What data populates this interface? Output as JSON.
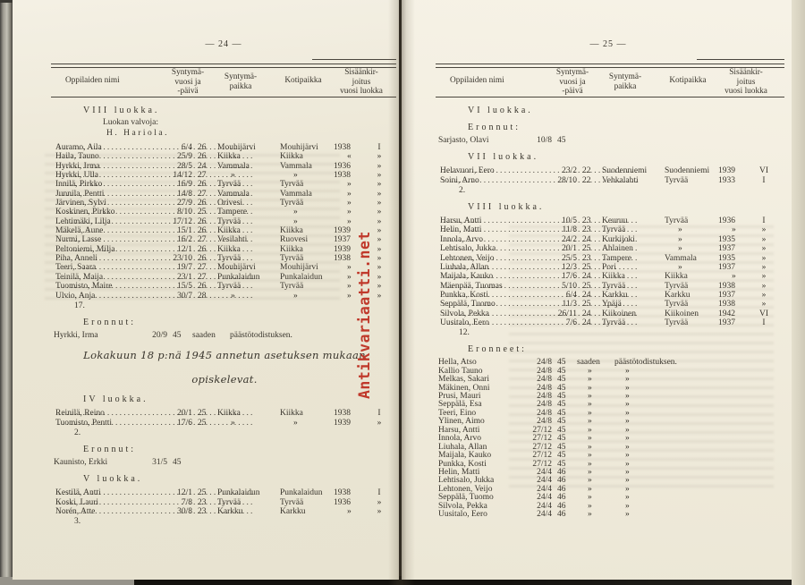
{
  "watermark": {
    "text": "Antikvariaatti.net",
    "color": "#c0392b"
  },
  "pages": [
    {
      "page_number": "— 24 —",
      "table_header": {
        "name": "Oppilaiden nimi",
        "birth": "Syntymä-\nvuosi ja\n-päivä",
        "birthplace": "Syntymä-\npaikka",
        "home": "Kotipaikka",
        "enroll": "Sisäänkir-\njoitus\nvuosi luokka"
      },
      "sections": [
        {
          "type": "heading",
          "text": "VIII luokka."
        },
        {
          "type": "subline",
          "text": "Luokan valvoja:"
        },
        {
          "type": "subline2",
          "text": "H. Hariola."
        },
        {
          "type": "roster",
          "rows": [
            [
              "Auramo, Aila",
              "6/4",
              "26",
              "Mouhijärvi",
              "Mouhijärvi",
              "1938",
              "I"
            ],
            [
              "Haila, Tauno",
              "25/9",
              "26",
              "Kiikka",
              "Kiikka",
              "«",
              "»"
            ],
            [
              "Hyrkki, Irma",
              "28/5",
              "24",
              "Vammala",
              "Vammala",
              "1936",
              "»"
            ],
            [
              "Hyrkki, Ulla",
              "14/12",
              "27",
              "»",
              "»",
              "1938",
              "»"
            ],
            [
              "Innilä, Pirkko",
              "16/9",
              "26",
              "Tyrvää",
              "Tyrvää",
              "»",
              "»"
            ],
            [
              "Junnila, Pentti",
              "14/8",
              "27",
              "Vammala",
              "Vammala",
              "»",
              "»"
            ],
            [
              "Järvinen, Sylvi",
              "27/9",
              "26",
              "Orivesi",
              "Tyrvää",
              "»",
              "»"
            ],
            [
              "Koskinen, Pirkko",
              "8/10",
              "25",
              "Tampere",
              "»",
              "»",
              "»"
            ],
            [
              "Lehtimäki, Lilja",
              "17/12",
              "26",
              "Tyrvää",
              "»",
              "»",
              "»"
            ],
            [
              "Mäkelä, Aune",
              "15/1",
              "26",
              "Kiikka",
              "Kiikka",
              "1939",
              "»"
            ],
            [
              "Nurmi, Lasse",
              "16/2",
              "27",
              "Vesilahti",
              "Ruovesi",
              "1937",
              "»"
            ],
            [
              "Peltoniemi, Milja",
              "12/1",
              "26",
              "Kiikka",
              "Kiikka",
              "1939",
              "»"
            ],
            [
              "Piha, Anneli",
              "23/10",
              "26",
              "Tyrvää",
              "Tyrvää",
              "1938",
              "»"
            ],
            [
              "Teeri, Saara",
              "19/7",
              "27",
              "Mouhijärvi",
              "Mouhijärvi",
              "»",
              "»"
            ],
            [
              "Teinilä, Maija",
              "23/1",
              "27",
              "Punkalaidun",
              "Punkalaidun",
              "»",
              "»"
            ],
            [
              "Tuomisto, Maire",
              "15/5",
              "26",
              "Tyrvää",
              "Tyrvää",
              "»",
              "»"
            ],
            [
              "Ulvio, Anja",
              "30/7",
              "28",
              "»",
              "»",
              "»",
              "»"
            ]
          ]
        },
        {
          "type": "count",
          "text": "17."
        },
        {
          "type": "heading",
          "text": "Eronnut:"
        },
        {
          "type": "exits",
          "rows": [
            [
              "Hyrkki, Irma",
              "20/9",
              "45",
              "saaden",
              "päästötodistuksen."
            ]
          ]
        },
        {
          "type": "note",
          "lines": [
            "Lokakuun 18 p:nä 1945 annetun asetuksen mukaan",
            "opiskelevat."
          ]
        },
        {
          "type": "heading",
          "text": "IV luokka."
        },
        {
          "type": "roster",
          "rows": [
            [
              "Reinilä, Reino",
              "20/1",
              "25",
              "Kiikka",
              "Kiikka",
              "1938",
              "I"
            ],
            [
              "Tuomisto, Pentti",
              "17/6",
              "25",
              "»",
              "»",
              "1939",
              "»"
            ]
          ]
        },
        {
          "type": "count",
          "text": "2."
        },
        {
          "type": "heading",
          "text": "Eronnut:"
        },
        {
          "type": "exits",
          "rows": [
            [
              "Kaunisto, Erkki",
              "31/5",
              "45",
              "",
              ""
            ]
          ]
        },
        {
          "type": "heading",
          "text": "V luokka."
        },
        {
          "type": "roster",
          "rows": [
            [
              "Kestilä, Antti",
              "12/1",
              "25",
              "Punkalaidun",
              "Punkalaidun",
              "1938",
              "I"
            ],
            [
              "Koski, Lauri",
              "7/8",
              "23",
              "Tyrvää",
              "Tyrvää",
              "1936",
              "»"
            ],
            [
              "Norén, Atte",
              "30/8",
              "23",
              "Karkku",
              "Karkku",
              "»",
              "»"
            ]
          ]
        },
        {
          "type": "count",
          "text": "3."
        }
      ]
    },
    {
      "page_number": "— 25 —",
      "table_header": {
        "name": "Oppilaiden nimi",
        "birth": "Syntymä-\nvuosi ja\n-päivä",
        "birthplace": "Syntymä-\npaikka",
        "home": "Kotipaikka",
        "enroll": "Sisäänkir-\njoitus\nvuosi luokka"
      },
      "sections": [
        {
          "type": "heading",
          "text": "VI luokka."
        },
        {
          "type": "heading",
          "text": "Eronnut:"
        },
        {
          "type": "exits",
          "rows": [
            [
              "Sarjasto, Olavi",
              "10/8",
              "45",
              "",
              ""
            ]
          ]
        },
        {
          "type": "heading",
          "text": "VII luokka."
        },
        {
          "type": "roster",
          "rows": [
            [
              "Helavuori, Eero",
              "23/2",
              "22",
              "Suodenniemi",
              "Suodenniemi",
              "1939",
              "VI"
            ],
            [
              "Soini, Arno",
              "28/10",
              "22",
              "Vehkalahti",
              "Tyrvää",
              "1933",
              "I"
            ]
          ]
        },
        {
          "type": "count",
          "text": "2."
        },
        {
          "type": "heading",
          "text": "VIII luokka."
        },
        {
          "type": "roster",
          "rows": [
            [
              "Harsu, Antti",
              "10/5",
              "23",
              "Keuruu",
              "Tyrvää",
              "1936",
              "I"
            ],
            [
              "Helin, Matti",
              "11/8",
              "23",
              "Tyrvää",
              "»",
              "»",
              "»"
            ],
            [
              "Innola, Arvo",
              "24/2",
              "24",
              "Kurkijoki",
              "»",
              "1935",
              "»"
            ],
            [
              "Lehtisalo, Jukka",
              "20/1",
              "25",
              "Ahlainen",
              "»",
              "1937",
              "»"
            ],
            [
              "Lehtonen, Veijo",
              "25/5",
              "23",
              "Tampere",
              "Vammala",
              "1935",
              "»"
            ],
            [
              "Liuhala, Allan",
              "12/3",
              "25",
              "Pori",
              "»",
              "1937",
              "»"
            ],
            [
              "Maijala, Kauko",
              "17/6",
              "24",
              "Kiikka",
              "Kiikka",
              "»",
              "»"
            ],
            [
              "Mäenpää, Tuomas",
              "5/10",
              "25",
              "Tyrvää",
              "Tyrvää",
              "1938",
              "»"
            ],
            [
              "Punkka, Kosti",
              "6/4",
              "24",
              "Karkku",
              "Karkku",
              "1937",
              "»"
            ],
            [
              "Seppälä, Tuomo",
              "11/3",
              "25",
              "Ypäjä",
              "Tyrvää",
              "1938",
              "»"
            ],
            [
              "Silvola, Pekka",
              "26/11",
              "24",
              "Kiikoinen",
              "Kiikoinen",
              "1942",
              "VI"
            ],
            [
              "Uusitalo, Eero",
              "7/6",
              "24",
              "Tyrvää",
              "Tyrvää",
              "1937",
              "I"
            ]
          ]
        },
        {
          "type": "count",
          "text": "12."
        },
        {
          "type": "heading",
          "text": "Eronneet:"
        },
        {
          "type": "exits",
          "rows": [
            [
              "Hella, Atso",
              "24/8",
              "45",
              "saaden",
              "päästötodistuksen."
            ],
            [
              "Kallio Tauno",
              "24/8",
              "45",
              "»",
              "»"
            ],
            [
              "Melkas, Sakari",
              "24/8",
              "45",
              "»",
              "»"
            ],
            [
              "Mäkinen, Onni",
              "24/8",
              "45",
              "»",
              "»"
            ],
            [
              "Prusi, Mauri",
              "24/8",
              "45",
              "»",
              "»"
            ],
            [
              "Seppälä, Esa",
              "24/8",
              "45",
              "»",
              "»"
            ],
            [
              "Teeri, Eino",
              "24/8",
              "45",
              "»",
              "»"
            ],
            [
              "Ylinen, Aimo",
              "24/8",
              "45",
              "»",
              "»"
            ],
            [
              "Harsu, Antti",
              "27/12",
              "45",
              "»",
              "»"
            ],
            [
              "Innola, Arvo",
              "27/12",
              "45",
              "»",
              "»"
            ],
            [
              "Liuhala, Allan",
              "27/12",
              "45",
              "»",
              "»"
            ],
            [
              "Maijala, Kauko",
              "27/12",
              "45",
              "»",
              "»"
            ],
            [
              "Punkka, Kosti",
              "27/12",
              "45",
              "»",
              "»"
            ],
            [
              "Helin, Matti",
              "24/4",
              "46",
              "»",
              "»"
            ],
            [
              "Lehtisalo, Jukka",
              "24/4",
              "46",
              "»",
              "»"
            ],
            [
              "Lehtonen, Veijo",
              "24/4",
              "46",
              "»",
              "»"
            ],
            [
              "Seppälä, Tuomo",
              "24/4",
              "46",
              "»",
              "»"
            ],
            [
              "Silvola, Pekka",
              "24/4",
              "46",
              "»",
              "»"
            ],
            [
              "Uusitalo, Eero",
              "24/4",
              "46",
              "»",
              "»"
            ]
          ]
        }
      ]
    }
  ]
}
